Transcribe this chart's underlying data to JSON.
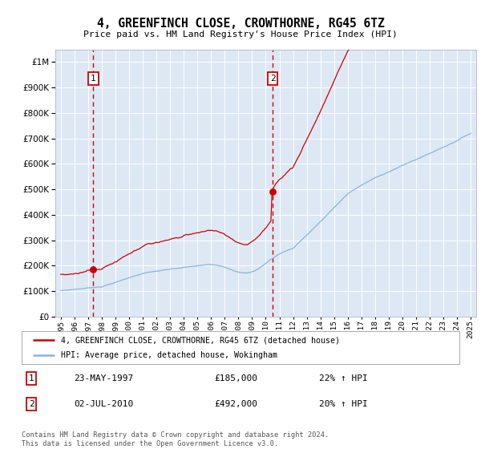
{
  "title": "4, GREENFINCH CLOSE, CROWTHORNE, RG45 6TZ",
  "subtitle": "Price paid vs. HM Land Registry's House Price Index (HPI)",
  "bg_color": "#dde8f4",
  "grid_color": "#ffffff",
  "hpi_color": "#8ab4d8",
  "price_color": "#cc0000",
  "sale1_year": 1997.38,
  "sale1_price": 185000,
  "sale2_year": 2010.5,
  "sale2_price": 492000,
  "ylim": [
    0,
    1050000
  ],
  "xlim_start": 1994.6,
  "xlim_end": 2025.4,
  "legend_label_price": "4, GREENFINCH CLOSE, CROWTHORNE, RG45 6TZ (detached house)",
  "legend_label_hpi": "HPI: Average price, detached house, Wokingham",
  "footer": "Contains HM Land Registry data © Crown copyright and database right 2024.\nThis data is licensed under the Open Government Licence v3.0.",
  "table_row1": [
    "1",
    "23-MAY-1997",
    "£185,000",
    "22% ↑ HPI"
  ],
  "table_row2": [
    "2",
    "02-JUL-2010",
    "£492,000",
    "20% ↑ HPI"
  ]
}
